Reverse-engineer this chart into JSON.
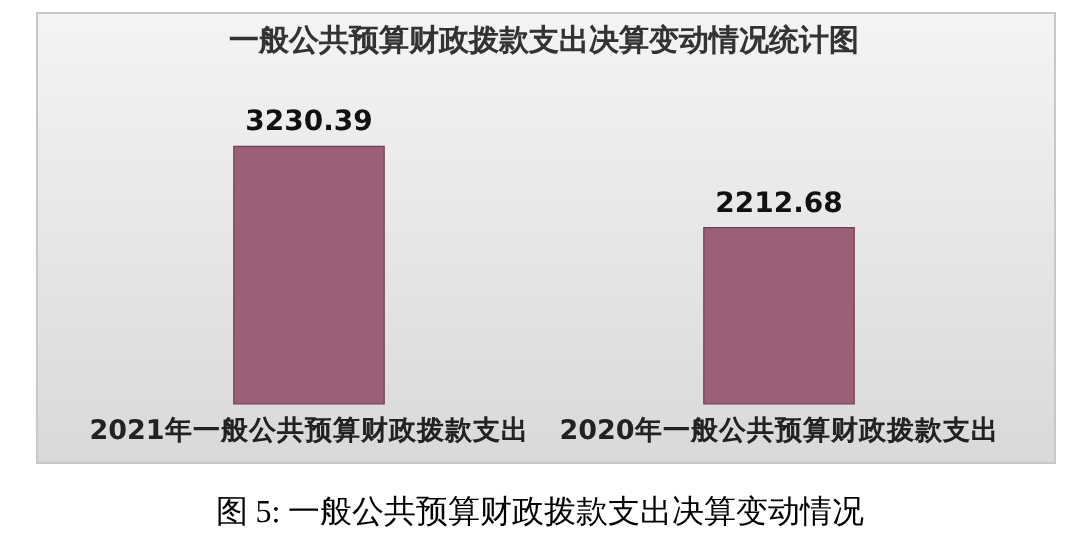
{
  "chart_data": {
    "type": "bar",
    "title": "一般公共预算财政拨款支出决算变动情况统计图",
    "categories": [
      "2021年一般公共预算财政拨款支出",
      "2020年一般公共预算财政拨款支出"
    ],
    "values": [
      3230.39,
      2212.68
    ],
    "color": "#9b5f77",
    "data_labels": true,
    "grid": false,
    "annotations": [
      "图 5:  一般公共预算财政拨款支出决算变动情况"
    ]
  }
}
